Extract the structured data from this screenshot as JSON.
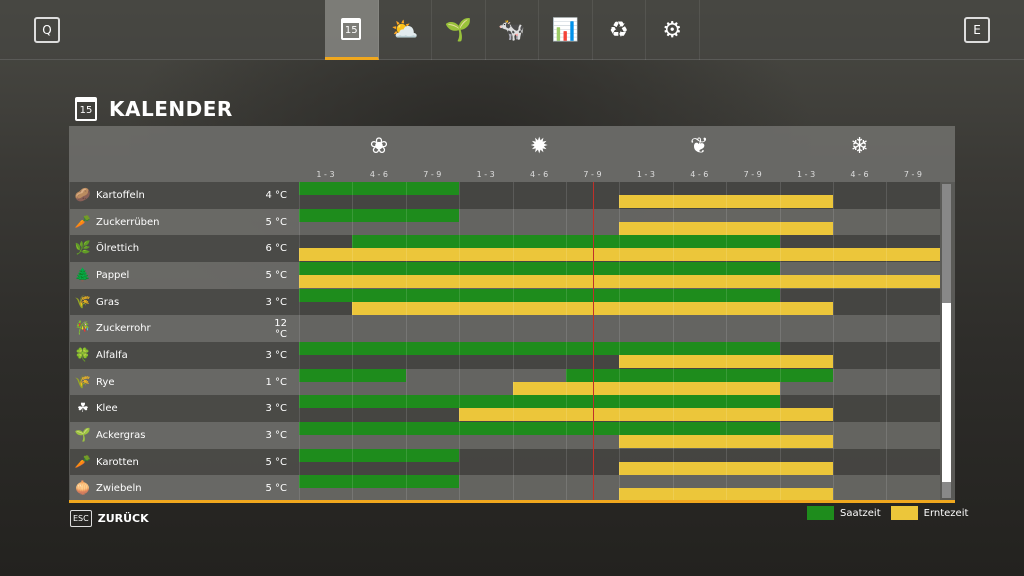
{
  "topbar": {
    "left_key": "Q",
    "right_key": "E",
    "tabs": [
      {
        "icon": "calendar-icon",
        "glyph": "15",
        "active": true
      },
      {
        "icon": "weather-icon",
        "glyph": "⛅"
      },
      {
        "icon": "sprout-icon",
        "glyph": "🌱"
      },
      {
        "icon": "cow-icon",
        "glyph": "🐄"
      },
      {
        "icon": "statistics-icon",
        "glyph": "📊"
      },
      {
        "icon": "cycle-icon",
        "glyph": "♻"
      },
      {
        "icon": "settings-icon",
        "glyph": "⚙"
      }
    ]
  },
  "page": {
    "title": "KALENDER",
    "calendar_day": "15"
  },
  "colors": {
    "sowing": "#1e8c1c",
    "harvest": "#ecc63a",
    "accent": "#f0a81e",
    "now": "#c0302a"
  },
  "seasons": [
    {
      "icon": "spring-flower-icon",
      "glyph": "❀"
    },
    {
      "icon": "summer-sun-icon",
      "glyph": "✹"
    },
    {
      "icon": "autumn-leaf-icon",
      "glyph": "❦"
    },
    {
      "icon": "winter-snowflake-icon",
      "glyph": "❄"
    }
  ],
  "months": [
    "1 - 3",
    "4 - 6",
    "7 - 9",
    "1 - 3",
    "4 - 6",
    "7 - 9",
    "1 - 3",
    "4 - 6",
    "7 - 9",
    "1 - 3",
    "4 - 6",
    "7 - 9"
  ],
  "current_period": 5.5,
  "crops": [
    {
      "name": "Kartoffeln",
      "temp": "4 °C",
      "icon": "🥔",
      "sow": [
        [
          1,
          3
        ]
      ],
      "harvest": [
        [
          7,
          10
        ]
      ]
    },
    {
      "name": "Zuckerrüben",
      "temp": "5 °C",
      "icon": "🥕",
      "sow": [
        [
          1,
          3
        ]
      ],
      "harvest": [
        [
          7,
          10
        ]
      ]
    },
    {
      "name": "Ölrettich",
      "temp": "6 °C",
      "icon": "🌿",
      "sow": [
        [
          2,
          9
        ]
      ],
      "harvest": [
        [
          1,
          12
        ]
      ]
    },
    {
      "name": "Pappel",
      "temp": "5 °C",
      "icon": "🌲",
      "sow": [
        [
          1,
          9
        ]
      ],
      "harvest": [
        [
          1,
          12
        ]
      ]
    },
    {
      "name": "Gras",
      "temp": "3 °C",
      "icon": "🌾",
      "sow": [
        [
          1,
          9
        ]
      ],
      "harvest": [
        [
          2,
          10
        ]
      ]
    },
    {
      "name": "Zuckerrohr",
      "temp": "12 °C",
      "icon": "🎋",
      "sow": [],
      "harvest": []
    },
    {
      "name": "Alfalfa",
      "temp": "3 °C",
      "icon": "🍀",
      "sow": [
        [
          1,
          9
        ]
      ],
      "harvest": [
        [
          7,
          10
        ]
      ]
    },
    {
      "name": "Rye",
      "temp": "1 °C",
      "icon": "🌾",
      "sow": [
        [
          1,
          2
        ],
        [
          6,
          10
        ]
      ],
      "harvest": [
        [
          5,
          9
        ]
      ]
    },
    {
      "name": "Klee",
      "temp": "3 °C",
      "icon": "☘",
      "sow": [
        [
          1,
          9
        ]
      ],
      "harvest": [
        [
          4,
          10
        ]
      ]
    },
    {
      "name": "Ackergras",
      "temp": "3 °C",
      "icon": "🌱",
      "sow": [
        [
          1,
          9
        ]
      ],
      "harvest": [
        [
          7,
          10
        ]
      ]
    },
    {
      "name": "Karotten",
      "temp": "5 °C",
      "icon": "🥕",
      "sow": [
        [
          1,
          3
        ]
      ],
      "harvest": [
        [
          7,
          10
        ]
      ]
    },
    {
      "name": "Zwiebeln",
      "temp": "5 °C",
      "icon": "🧅",
      "sow": [
        [
          1,
          3
        ]
      ],
      "harvest": [
        [
          7,
          10
        ]
      ]
    }
  ],
  "scroll": {
    "position_fraction": 0.38,
    "visible_fraction": 0.57
  },
  "footer": {
    "esc_key": "ESC",
    "back_label": "ZURÜCK"
  },
  "legend": {
    "sowing": "Saatzeit",
    "harvest": "Erntezeit"
  }
}
